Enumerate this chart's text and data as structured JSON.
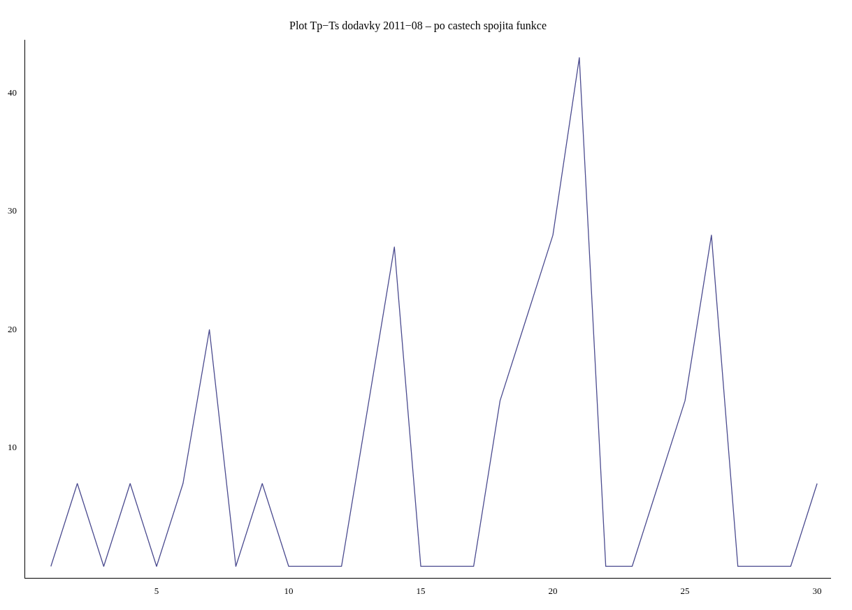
{
  "chart_data": {
    "type": "line",
    "title": "Plot Tp−Ts dodavky 2011−08 – po castech spojita funkce",
    "x": [
      1,
      2,
      3,
      4,
      5,
      6,
      7,
      8,
      9,
      10,
      11,
      12,
      13,
      14,
      15,
      16,
      17,
      18,
      19,
      20,
      21,
      22,
      23,
      24,
      25,
      26,
      27,
      28,
      29,
      30
    ],
    "series": [
      {
        "color": "#4b4b8f",
        "values": [
          0,
          7,
          0,
          7,
          0,
          7,
          20,
          0,
          7,
          0,
          0,
          0,
          13.5,
          27,
          0,
          0,
          0,
          14,
          21,
          28,
          43,
          0,
          0,
          7,
          14,
          28,
          0,
          0,
          0,
          7
        ]
      }
    ],
    "xlim": [
      0,
      30.5
    ],
    "xticks": [
      5,
      10,
      15,
      20,
      25,
      30
    ],
    "ylim": [
      -1,
      44.5
    ],
    "yticks": [
      10,
      20,
      30,
      40
    ],
    "grid": false,
    "legend": false,
    "marker": "none",
    "line_style": "solid"
  }
}
